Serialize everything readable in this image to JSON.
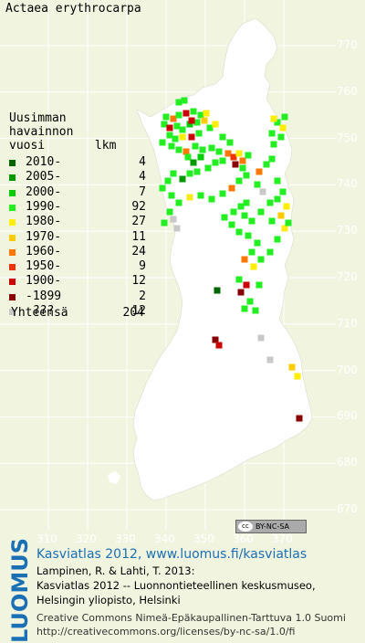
{
  "species": "Actaea erythrocarpa",
  "legend": {
    "header": "Uusimman\nhavainnon\nvuosi       lkm",
    "rows": [
      {
        "label": "2010-",
        "count": "4",
        "color": "#006400"
      },
      {
        "label": "2005-",
        "count": "4",
        "color": "#009900"
      },
      {
        "label": "2000-",
        "count": "7",
        "color": "#00cc00"
      },
      {
        "label": "1990-",
        "count": "92",
        "color": "#22ee22"
      },
      {
        "label": "1980-",
        "count": "27",
        "color": "#ffee00"
      },
      {
        "label": "1970-",
        "count": "11",
        "color": "#ffcc00"
      },
      {
        "label": "1960-",
        "count": "24",
        "color": "#ff7700"
      },
      {
        "label": "1950-",
        "count": "9",
        "color": "#ee3300"
      },
      {
        "label": "1900-",
        "count": "12",
        "color": "#cc0000"
      },
      {
        "label": "-1899",
        "count": "2",
        "color": "#880000"
      },
      {
        "label": " ???",
        "count": "12",
        "color": "#c8c8c8"
      }
    ],
    "total_label": "Yhteensä",
    "total_count": "204"
  },
  "y_ticks": [
    "770",
    "760",
    "750",
    "740",
    "730",
    "720",
    "710",
    "700",
    "690",
    "680",
    "670"
  ],
  "x_ticks": [
    "310",
    "320",
    "330",
    "340",
    "350",
    "360",
    "370"
  ],
  "cc_badge": "BY-NC-SA",
  "footer": {
    "atlas": "Kasviatlas 2012, www.luomus.fi/kasviatlas",
    "cite1": "Lampinen, R. & Lahti, T. 2013:",
    "cite2": "Kasviatlas 2012 -- Luonnontieteellinen keskusmuseo,",
    "cite3": "Helsingin yliopisto, Helsinki",
    "license": "Creative Commons Nimeä-Epäkaupallinen-Tarttuva 1.0 Suomi",
    "license_url": "http://creativecommons.org/licenses/by-nc-sa/1.0/fi"
  },
  "logo": "LUOMUS",
  "colors": {
    "background": "#f1f5df",
    "land": "#ffffff",
    "grid": "#ffffff",
    "logo_blue": "#1b6fb5"
  }
}
